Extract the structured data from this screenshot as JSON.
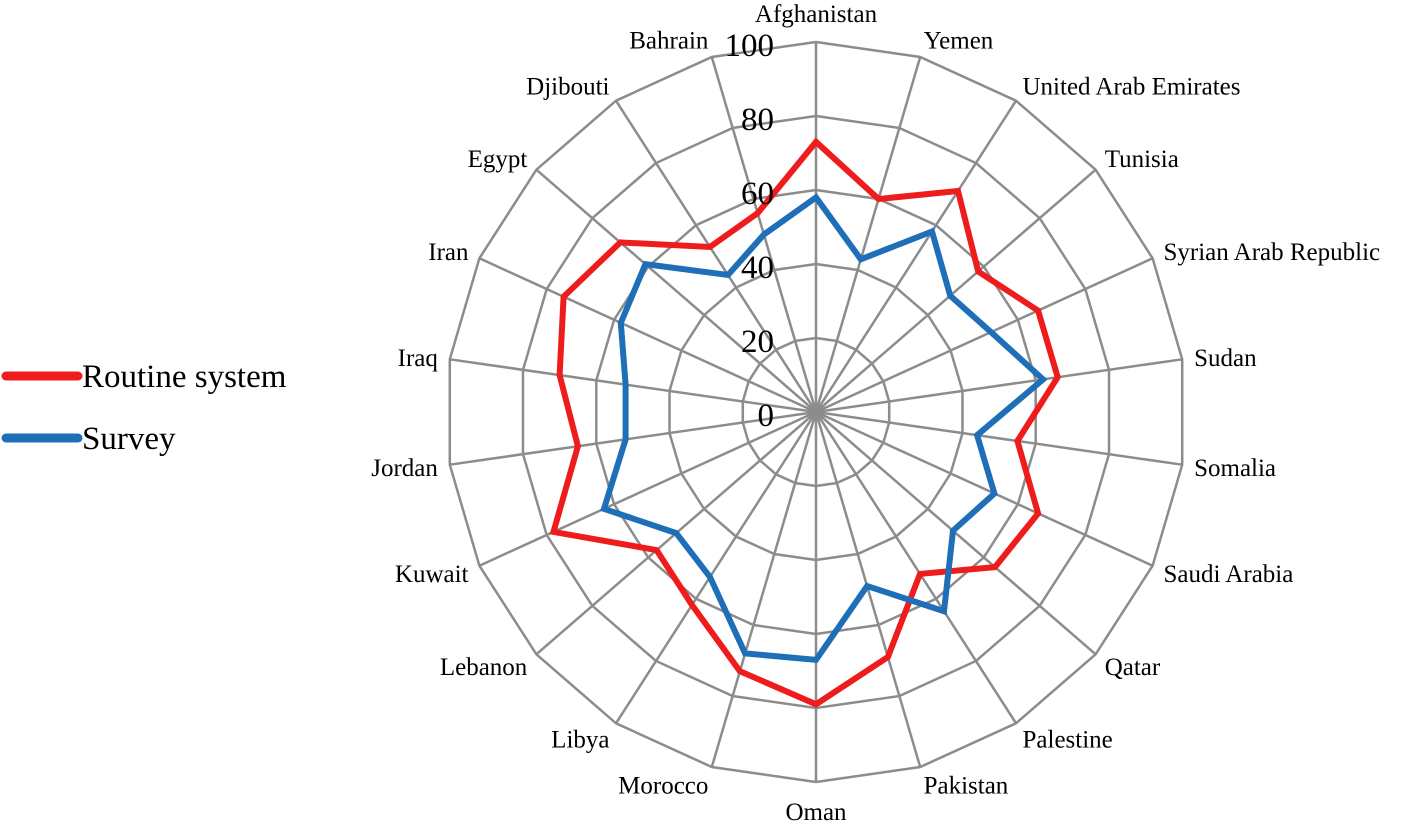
{
  "chart_data": {
    "type": "radar",
    "title": "",
    "categories": [
      "Afghanistan",
      "Yemen",
      "United Arab Emirates",
      "Tunisia",
      "Syrian Arab Republic",
      "Sudan",
      "Somalia",
      "Saudi Arabia",
      "Qatar",
      "Palestine",
      "Pakistan",
      "Oman",
      "Morocco",
      "Libya",
      "Lebanon",
      "Kuwait",
      "Jordan",
      "Iraq",
      "Iran",
      "Egypt",
      "Djibouti",
      "Bahrain"
    ],
    "rlim": [
      0,
      100
    ],
    "ticks": [
      0,
      20,
      40,
      60,
      80,
      100
    ],
    "tick_labels": [
      "0",
      "20",
      "40",
      "60",
      "80",
      "100"
    ],
    "grid": true,
    "legend": "left",
    "series": [
      {
        "name": "Routine system",
        "color": "#ee1c1c",
        "values": [
          73,
          60,
          71,
          58,
          66,
          66,
          55,
          66,
          64,
          52,
          69,
          79,
          73,
          62,
          57,
          78,
          65,
          70,
          75,
          70,
          53,
          56
        ]
      },
      {
        "name": "Survey",
        "color": "#1f6fb8",
        "values": [
          58,
          43,
          58,
          48,
          52,
          62,
          44,
          53,
          49,
          64,
          49,
          67,
          68,
          53,
          50,
          63,
          52,
          52,
          58,
          61,
          44,
          50
        ]
      }
    ]
  }
}
